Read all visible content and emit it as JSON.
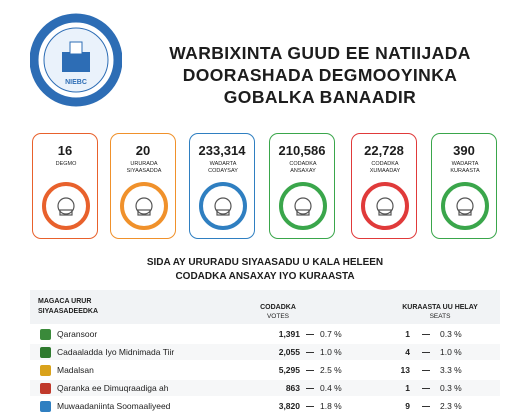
{
  "header": {
    "logo_text": "NIEBC",
    "title": [
      "WARBIXINTA GUUD EE NATIIJADA",
      "DOORASHADA DEGMOOYINKA",
      "GOBALKA BANAADIR"
    ]
  },
  "stats": [
    {
      "number": "16",
      "label": "DEGMO"
    },
    {
      "number": "20",
      "label": "URURADA SIYAASADDA"
    },
    {
      "number": "233,314",
      "label": "WADARTA CODAYSAY"
    },
    {
      "number": "210,586",
      "label": "CODADKA ANSAXAY"
    },
    {
      "number": "22,728",
      "label": "CODADKA XUMAADAY"
    },
    {
      "number": "390",
      "label": "WADARTA KURAASTA"
    }
  ],
  "subtitle": [
    "SIDA AY URURADU SIYAASADU U KALA HELEEN",
    "CODADKA ANSAXAY IYO KURAASTA"
  ],
  "table": {
    "headers": {
      "party": "MAGACA URUR SIYAASADEEDKA",
      "votes": "CODADKA",
      "votes_sub": "VOTES",
      "seats": "KURAASTA UU HELAY",
      "seats_sub": "SEATS"
    },
    "rows": [
      [
        "Qaransoor",
        "1,391",
        "0.7 %",
        "1",
        "0.3 %"
      ],
      [
        "Cadaaladda Iyo Midnimada Tiir",
        "2,055",
        "1.0 %",
        "4",
        "1.0 %"
      ],
      [
        "Madalsan",
        "5,295",
        "2.5 %",
        "13",
        "3.3 %"
      ],
      [
        "Qaranka ee Dimuqraadiga ah",
        "863",
        "0.4 %",
        "1",
        "0.3 %"
      ],
      [
        "Muwaadaniinta Soomaaliyeed",
        "3,820",
        "1.8 %",
        "9",
        "2.3 %"
      ]
    ]
  }
}
